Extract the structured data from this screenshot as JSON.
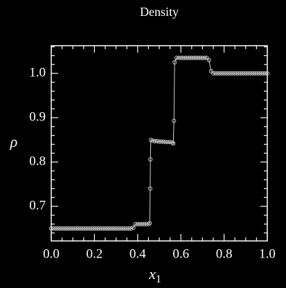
{
  "chart_data": {
    "type": "line",
    "title": "Density",
    "ylabel": "ρ",
    "xlabel": "x",
    "xlabel_subscript": "1",
    "x": [
      0,
      0.01,
      0.02,
      0.03,
      0.04,
      0.05,
      0.06,
      0.07,
      0.08,
      0.09,
      0.1,
      0.11,
      0.12,
      0.13,
      0.14,
      0.15,
      0.16,
      0.17,
      0.18,
      0.19,
      0.2,
      0.21,
      0.22,
      0.23,
      0.24,
      0.25,
      0.26,
      0.27,
      0.28,
      0.29,
      0.3,
      0.31,
      0.32,
      0.33,
      0.34,
      0.35,
      0.36,
      0.37,
      0.38,
      0.39,
      0.4,
      0.41,
      0.42,
      0.43,
      0.44,
      0.45,
      0.456,
      0.458,
      0.459,
      0.461,
      0.47,
      0.48,
      0.49,
      0.5,
      0.51,
      0.52,
      0.53,
      0.54,
      0.55,
      0.56,
      0.565,
      0.568,
      0.571,
      0.58,
      0.59,
      0.6,
      0.61,
      0.62,
      0.63,
      0.64,
      0.65,
      0.66,
      0.67,
      0.68,
      0.69,
      0.7,
      0.71,
      0.72,
      0.73,
      0.74,
      0.75,
      0.76,
      0.77,
      0.78,
      0.79,
      0.8,
      0.81,
      0.82,
      0.83,
      0.84,
      0.85,
      0.86,
      0.87,
      0.88,
      0.89,
      0.9,
      0.91,
      0.92,
      0.93,
      0.94,
      0.95,
      0.96,
      0.97,
      0.98,
      0.99,
      1.0
    ],
    "series": [
      {
        "color": "#d0d0d0",
        "values": [
          0.65,
          0.65,
          0.65,
          0.65,
          0.65,
          0.65,
          0.65,
          0.65,
          0.65,
          0.65,
          0.65,
          0.65,
          0.65,
          0.65,
          0.65,
          0.65,
          0.65,
          0.65,
          0.65,
          0.65,
          0.65,
          0.65,
          0.65,
          0.65,
          0.65,
          0.65,
          0.65,
          0.65,
          0.65,
          0.65,
          0.65,
          0.65,
          0.65,
          0.65,
          0.65,
          0.65,
          0.65,
          0.65,
          0.652,
          0.66,
          0.66,
          0.66,
          0.66,
          0.66,
          0.66,
          0.66,
          0.662,
          0.74,
          0.806,
          0.85,
          0.848,
          0.847,
          0.847,
          0.846,
          0.846,
          0.846,
          0.845,
          0.845,
          0.845,
          0.844,
          0.842,
          0.893,
          1.025,
          1.035,
          1.035,
          1.035,
          1.035,
          1.035,
          1.035,
          1.035,
          1.035,
          1.035,
          1.035,
          1.035,
          1.035,
          1.035,
          1.035,
          1.035,
          1.03,
          1.005,
          1.0,
          1.0,
          1.0,
          1.0,
          1.0,
          1.0,
          1.0,
          1.0,
          1.0,
          1.0,
          1.0,
          1.0,
          1.0,
          1.0,
          1.0,
          1.0,
          1.0,
          1.0,
          1.0,
          1.0,
          1.0,
          1.0,
          1.0,
          1.0,
          1.0,
          1.0
        ]
      }
    ],
    "xlim": [
      0,
      1
    ],
    "ylim": [
      0.622,
      1.0625
    ],
    "xticks": [
      {
        "value": 0,
        "label": "0.0"
      },
      {
        "value": 0.2,
        "label": "0.2"
      },
      {
        "value": 0.4,
        "label": "0.4"
      },
      {
        "value": 0.6,
        "label": "0.6"
      },
      {
        "value": 0.8,
        "label": "0.8"
      },
      {
        "value": 1,
        "label": "1.0"
      }
    ],
    "yticks": [
      0.7,
      0.8,
      0.9,
      {
        "value": 1,
        "label": "1.0"
      }
    ],
    "xminorticks": [
      0.05,
      0.1,
      0.15,
      0.25,
      0.3,
      0.35,
      0.45,
      0.5,
      0.55,
      0.65,
      0.7,
      0.75,
      0.85,
      0.9,
      0.95
    ],
    "yminorticks": [
      0.64,
      0.66,
      0.68,
      0.72,
      0.74,
      0.76,
      0.78,
      0.82,
      0.84,
      0.86,
      0.88,
      0.92,
      0.94,
      0.96,
      0.98,
      1.02,
      1.04,
      1.06
    ]
  }
}
